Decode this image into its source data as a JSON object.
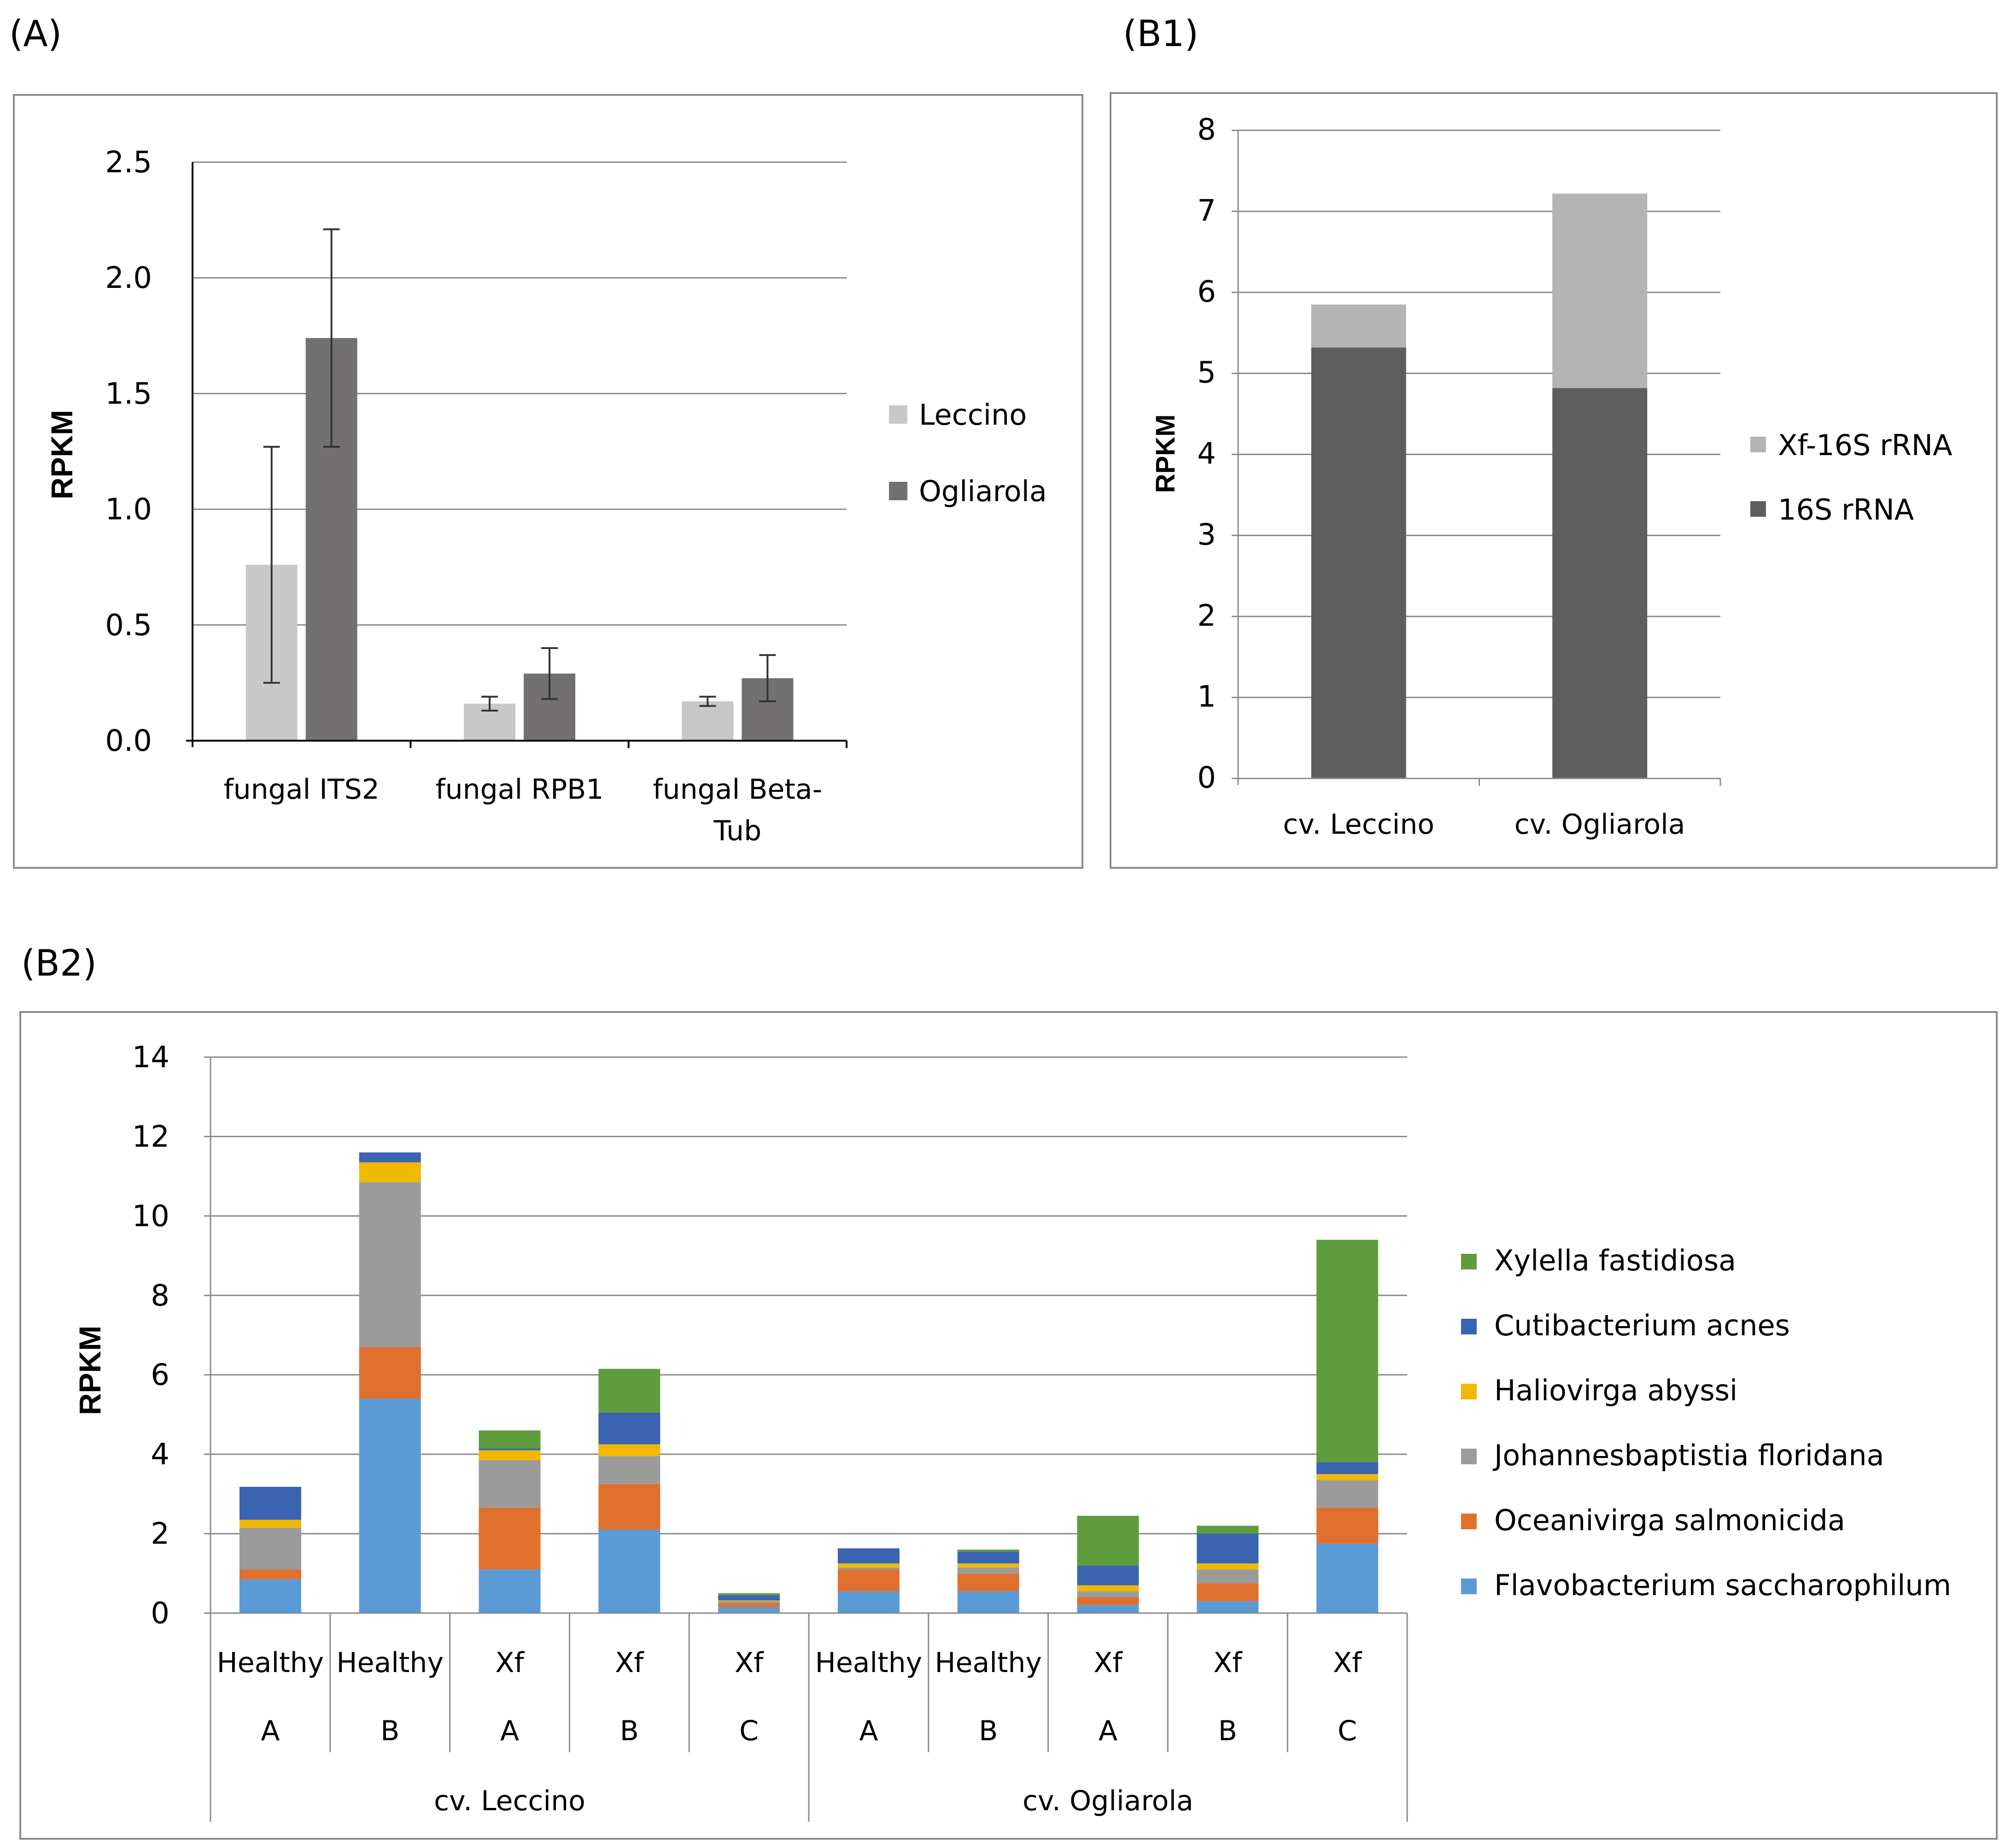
{
  "colors": {
    "leccino": "#c8c8c8",
    "ogliarola": "#727070",
    "xf16s": "#b4b4b4",
    "s16": "#5e5e5e",
    "species": [
      "#5b9bd5",
      "#e0702d",
      "#9b9b9b",
      "#f1b800",
      "#3a63b0",
      "#5f9c3d"
    ]
  },
  "chart_data": [
    {
      "panel": "(A)",
      "type": "bar",
      "ylabel": "RPKM",
      "ylim": [
        0,
        2.5
      ],
      "yticks": [
        "0.0",
        "0.5",
        "1.0",
        "1.5",
        "2.0",
        "2.5"
      ],
      "categories": [
        [
          "fungal ITS2"
        ],
        [
          "fungal RPB1"
        ],
        [
          "fungal Beta-",
          "Tub"
        ]
      ],
      "series": [
        {
          "name": "Leccino",
          "values": [
            0.76,
            0.16,
            0.17
          ],
          "err": [
            0.51,
            0.03,
            0.02
          ]
        },
        {
          "name": "Ogliarola",
          "values": [
            1.74,
            0.29,
            0.27
          ],
          "err": [
            0.47,
            0.11,
            0.1
          ]
        }
      ],
      "legend": "right",
      "grid": true
    },
    {
      "panel": "(B1)",
      "type": "bar",
      "stacked": true,
      "ylabel": "RPKM",
      "ylim": [
        0,
        8
      ],
      "yticks": [
        "0",
        "1",
        "2",
        "3",
        "4",
        "5",
        "6",
        "7",
        "8"
      ],
      "categories": [
        "cv. Leccino",
        "cv. Ogliarola"
      ],
      "series": [
        {
          "name": "16S rRNA",
          "values": [
            5.32,
            4.82
          ]
        },
        {
          "name": "Xf-16S rRNA",
          "values": [
            0.53,
            2.4
          ]
        }
      ],
      "legend_order": [
        "Xf-16S rRNA",
        "16S rRNA"
      ],
      "legend": "right",
      "grid": true
    },
    {
      "panel": "(B2)",
      "type": "bar",
      "stacked": true,
      "ylabel": "RPKM",
      "ylim": [
        0,
        14
      ],
      "yticks": [
        "0",
        "2",
        "4",
        "6",
        "8",
        "10",
        "12",
        "14"
      ],
      "categories": [
        {
          "status": "Healthy",
          "rep": "A"
        },
        {
          "status": "Healthy",
          "rep": "B"
        },
        {
          "status": "Xf",
          "rep": "A"
        },
        {
          "status": "Xf",
          "rep": "B"
        },
        {
          "status": "Xf",
          "rep": "C"
        },
        {
          "status": "Healthy",
          "rep": "A"
        },
        {
          "status": "Healthy",
          "rep": "B"
        },
        {
          "status": "Xf",
          "rep": "A"
        },
        {
          "status": "Xf",
          "rep": "B"
        },
        {
          "status": "Xf",
          "rep": "C"
        }
      ],
      "groups": [
        {
          "label": "cv. Leccino",
          "start": 0,
          "count": 5
        },
        {
          "label": "cv. Ogliarola",
          "start": 5,
          "count": 5
        }
      ],
      "series": [
        {
          "name": "Flavobacterium saccharophilum",
          "values": [
            0.85,
            5.4,
            1.1,
            2.1,
            0.15,
            0.55,
            0.55,
            0.2,
            0.3,
            1.75
          ]
        },
        {
          "name": "Oceanivirga salmonicida",
          "values": [
            0.25,
            1.3,
            1.55,
            1.15,
            0.1,
            0.55,
            0.45,
            0.2,
            0.45,
            0.9
          ]
        },
        {
          "name": "Johannesbaptistia floridana",
          "values": [
            1.05,
            4.15,
            1.2,
            0.7,
            0.05,
            0.05,
            0.15,
            0.15,
            0.35,
            0.7
          ]
        },
        {
          "name": "Haliovirga abyssi",
          "values": [
            0.2,
            0.5,
            0.25,
            0.3,
            0.02,
            0.1,
            0.1,
            0.15,
            0.15,
            0.15
          ]
        },
        {
          "name": "Cutibacterium acnes",
          "values": [
            0.83,
            0.25,
            0.05,
            0.8,
            0.13,
            0.38,
            0.3,
            0.5,
            0.75,
            0.3
          ]
        },
        {
          "name": "Xylella fastidiosa",
          "values": [
            0,
            0,
            0.45,
            1.1,
            0.05,
            0,
            0.05,
            1.25,
            0.2,
            5.6
          ]
        }
      ],
      "legend": "right",
      "grid": true
    }
  ]
}
